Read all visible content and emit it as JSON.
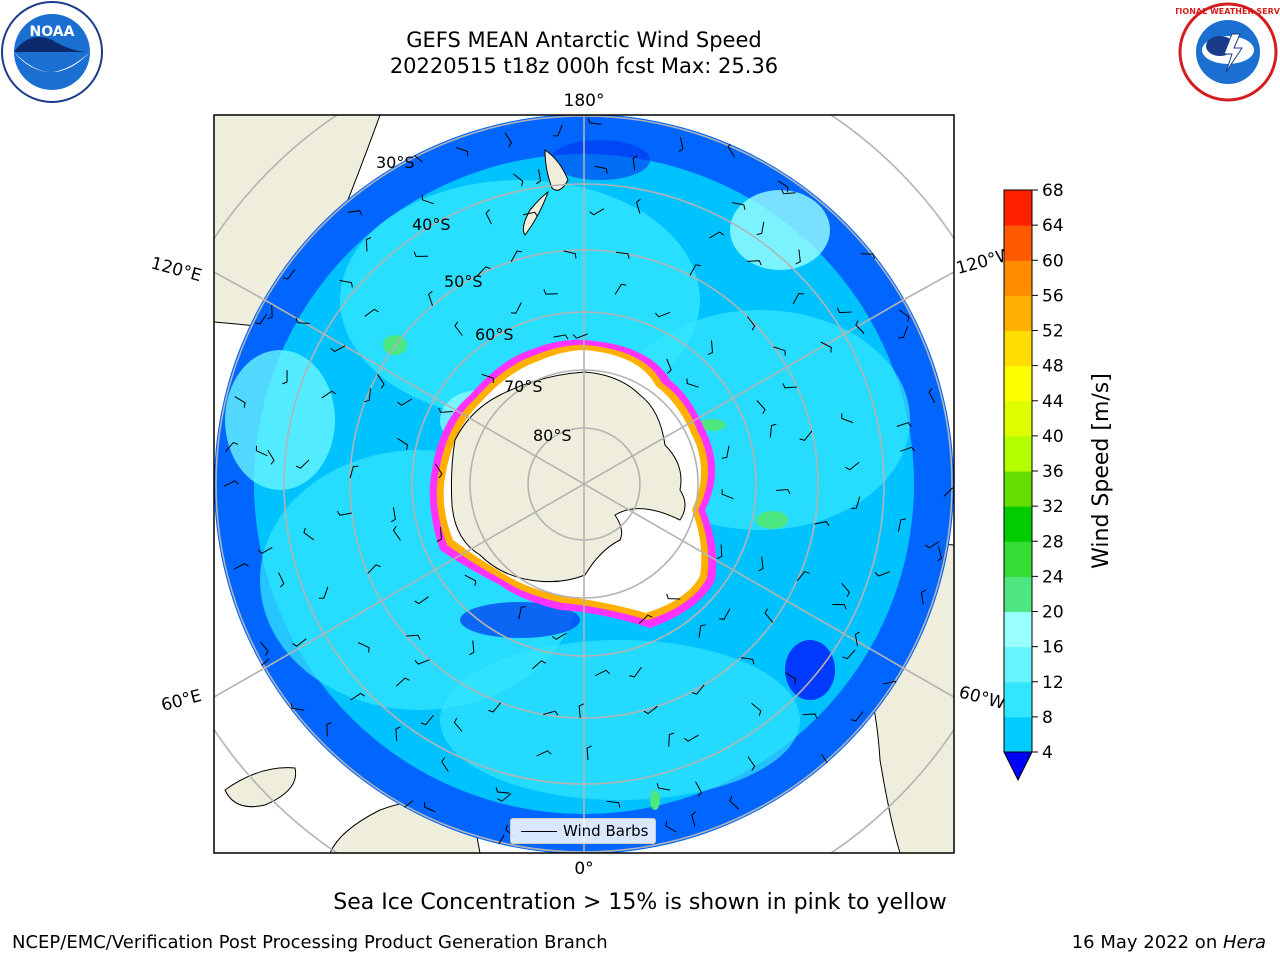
{
  "title": {
    "line1": "GEFS MEAN Antarctic Wind Speed",
    "line2": "20220515 t18z 000h fcst   Max: 25.36"
  },
  "map": {
    "projection": "south-polar-stereographic",
    "lon_labels": {
      "top": "180°",
      "bottom": "0°",
      "upper_left": "120°E",
      "upper_right": "120°W",
      "lower_left": "60°E",
      "lower_right": "60°W"
    },
    "lat_labels": [
      "30°S",
      "40°S",
      "50°S",
      "60°S",
      "70°S",
      "80°S"
    ],
    "land_color": "#efeedc",
    "ocean_missing_color": "#ffffff",
    "sea_ice_colors": [
      "#ff33ff",
      "#ffb000",
      "#ffff66"
    ]
  },
  "legend": {
    "wind_barbs_label": "Wind Barbs"
  },
  "colorbar": {
    "label": "Wind Speed [m/s]",
    "ticks": [
      "4",
      "8",
      "12",
      "16",
      "20",
      "24",
      "28",
      "32",
      "36",
      "40",
      "44",
      "48",
      "52",
      "56",
      "60",
      "64",
      "68"
    ],
    "colors": [
      "#0066ff",
      "#00ccff",
      "#33e6ff",
      "#66f5ff",
      "#99ffff",
      "#4de680",
      "#33dd33",
      "#00cc00",
      "#66dd00",
      "#b3ff00",
      "#ddff00",
      "#ffff00",
      "#ffdd00",
      "#ffb000",
      "#ff8c00",
      "#ff5a00",
      "#ff2000",
      "#ff0000"
    ],
    "under_color": "#0000ff"
  },
  "caption": "Sea Ice Concentration > 15% is shown in pink to yellow",
  "footer": {
    "left": "NCEP/EMC/Verification Post Processing Product Generation Branch",
    "right_prefix": "16 May 2022 on ",
    "right_machine": "Hera"
  },
  "logos": {
    "noaa_text": "NOAA",
    "nws_text": "NATIONAL WEATHER SERVICE"
  }
}
